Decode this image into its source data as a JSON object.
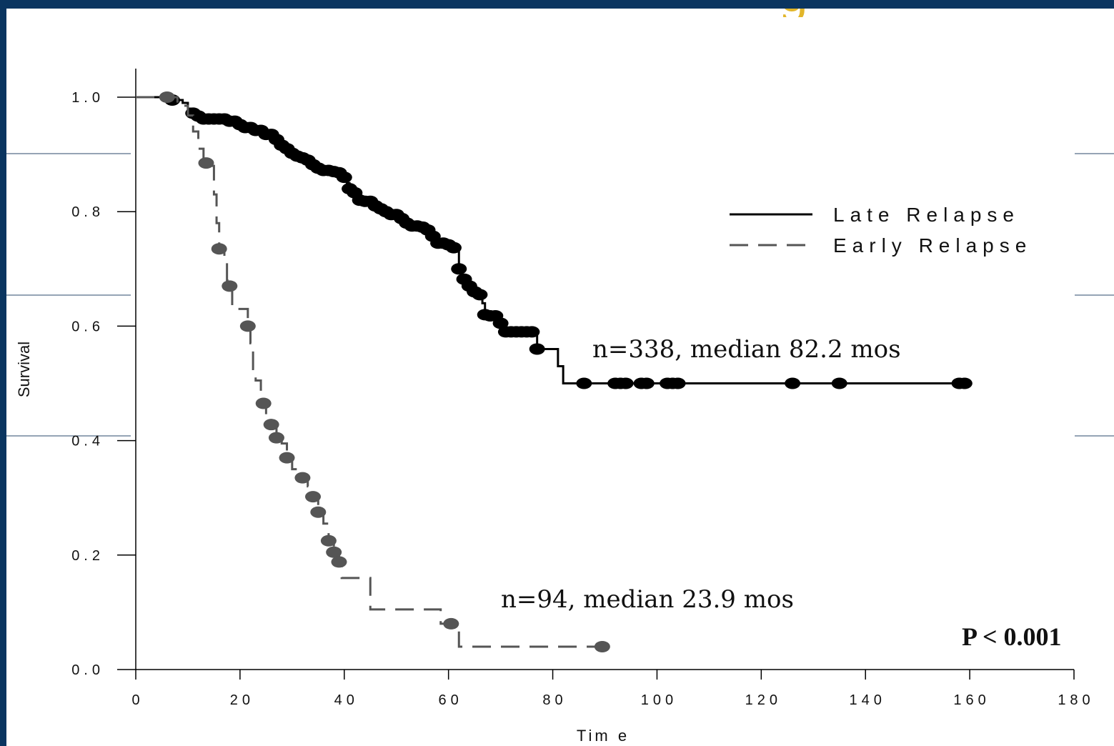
{
  "slide": {
    "title_fragment": "g"
  },
  "chart_data": {
    "type": "line",
    "title": "",
    "xlabel": "Tim e",
    "ylabel": "Survival",
    "xlim": [
      0,
      180
    ],
    "ylim": [
      0,
      1.0
    ],
    "x_ticks": [
      0,
      20,
      40,
      60,
      80,
      100,
      120,
      140,
      160,
      180
    ],
    "x_tick_labels": [
      "0",
      "20",
      "40",
      "60",
      "80",
      "100",
      "120",
      "140",
      "160",
      "180"
    ],
    "y_ticks": [
      0,
      0.2,
      0.4,
      0.6,
      0.8,
      1.0
    ],
    "y_tick_labels": [
      "0.0",
      "0.2",
      "0.4",
      "0.6",
      "0.8",
      "1.0"
    ],
    "grid": false,
    "legend_position": "top-right",
    "series": [
      {
        "name": "Late Relapse",
        "color": "#000000",
        "style": "solid",
        "steps": [
          [
            0,
            1.0
          ],
          [
            7,
            1.0
          ],
          [
            7,
            0.995
          ],
          [
            9,
            0.99
          ],
          [
            10,
            0.98
          ],
          [
            11,
            0.972
          ],
          [
            12,
            0.967
          ],
          [
            13,
            0.962
          ],
          [
            18,
            0.958
          ],
          [
            20,
            0.952
          ],
          [
            21,
            0.947
          ],
          [
            23,
            0.942
          ],
          [
            25,
            0.935
          ],
          [
            27,
            0.926
          ],
          [
            28,
            0.916
          ],
          [
            29,
            0.91
          ],
          [
            30,
            0.902
          ],
          [
            31,
            0.897
          ],
          [
            32,
            0.894
          ],
          [
            33,
            0.89
          ],
          [
            34,
            0.882
          ],
          [
            35,
            0.876
          ],
          [
            36,
            0.872
          ],
          [
            38,
            0.87
          ],
          [
            39,
            0.868
          ],
          [
            40,
            0.86
          ],
          [
            40.5,
            0.85
          ],
          [
            41,
            0.84
          ],
          [
            42,
            0.833
          ],
          [
            42.5,
            0.826
          ],
          [
            43,
            0.82
          ],
          [
            44,
            0.818
          ],
          [
            46,
            0.81
          ],
          [
            47,
            0.805
          ],
          [
            48,
            0.8
          ],
          [
            49,
            0.795
          ],
          [
            51,
            0.788
          ],
          [
            52,
            0.78
          ],
          [
            53,
            0.775
          ],
          [
            55,
            0.773
          ],
          [
            56,
            0.768
          ],
          [
            57,
            0.757
          ],
          [
            58,
            0.745
          ],
          [
            60,
            0.742
          ],
          [
            61,
            0.737
          ],
          [
            62,
            0.73
          ],
          [
            62,
            0.727
          ],
          [
            62,
            0.7
          ],
          [
            62.5,
            0.685
          ],
          [
            63,
            0.682
          ],
          [
            64,
            0.67
          ],
          [
            65,
            0.66
          ],
          [
            66,
            0.655
          ],
          [
            66.5,
            0.64
          ],
          [
            67,
            0.62
          ],
          [
            68,
            0.618
          ],
          [
            70,
            0.605
          ],
          [
            70.5,
            0.59
          ],
          [
            71,
            0.59
          ],
          [
            77,
            0.59
          ],
          [
            77,
            0.56
          ],
          [
            81,
            0.56
          ],
          [
            81,
            0.53
          ],
          [
            82,
            0.53
          ],
          [
            82,
            0.5
          ],
          [
            160,
            0.5
          ]
        ],
        "censor_x": [
          7,
          11,
          12,
          13,
          14,
          15,
          16,
          17,
          18,
          19,
          20,
          21,
          22,
          23,
          24,
          25,
          26,
          27,
          28,
          29,
          30,
          31,
          32,
          33,
          34,
          35,
          36,
          37,
          38,
          39,
          40,
          41,
          42,
          43,
          44,
          45,
          46,
          47,
          48,
          49,
          50,
          51,
          52,
          53,
          54,
          55,
          56,
          57,
          58,
          59,
          60,
          61,
          62,
          63,
          64,
          65,
          66,
          67,
          68,
          69,
          70,
          71,
          72,
          73,
          74,
          75,
          76,
          77,
          86,
          92,
          93,
          94,
          97,
          98,
          102,
          103,
          104,
          126,
          135,
          158,
          159
        ]
      },
      {
        "name": "Early Relapse",
        "color": "#555555",
        "style": "dashed",
        "steps": [
          [
            0,
            1.0
          ],
          [
            6,
            1.0
          ],
          [
            8,
            0.985
          ],
          [
            10,
            0.968
          ],
          [
            11,
            0.94
          ],
          [
            12,
            0.91
          ],
          [
            13,
            0.885
          ],
          [
            14.5,
            0.88
          ],
          [
            15,
            0.83
          ],
          [
            15.5,
            0.78
          ],
          [
            16,
            0.735
          ],
          [
            17,
            0.72
          ],
          [
            17.5,
            0.68
          ],
          [
            18,
            0.67
          ],
          [
            18.5,
            0.63
          ],
          [
            21,
            0.63
          ],
          [
            21.5,
            0.6
          ],
          [
            22,
            0.57
          ],
          [
            22.5,
            0.525
          ],
          [
            23,
            0.505
          ],
          [
            24,
            0.485
          ],
          [
            24.5,
            0.465
          ],
          [
            25,
            0.44
          ],
          [
            26,
            0.428
          ],
          [
            27,
            0.405
          ],
          [
            28,
            0.395
          ],
          [
            29,
            0.37
          ],
          [
            30,
            0.35
          ],
          [
            31,
            0.335
          ],
          [
            33,
            0.32
          ],
          [
            34,
            0.302
          ],
          [
            35,
            0.275
          ],
          [
            36,
            0.255
          ],
          [
            37,
            0.225
          ],
          [
            38,
            0.205
          ],
          [
            39,
            0.188
          ],
          [
            39.5,
            0.16
          ],
          [
            44,
            0.16
          ],
          [
            45,
            0.105
          ],
          [
            58,
            0.105
          ],
          [
            58.5,
            0.08
          ],
          [
            62,
            0.08
          ],
          [
            62,
            0.04
          ],
          [
            90,
            0.04
          ]
        ],
        "censor_x": [
          6,
          13.5,
          16,
          18,
          21.5,
          24.5,
          26,
          27,
          29,
          32,
          34,
          35,
          37,
          38,
          39,
          60.5,
          89.5
        ]
      }
    ],
    "annotations": [
      {
        "text": "n=338, median 82.2 mos"
      },
      {
        "text": "n=94, median 23.9 mos"
      },
      {
        "text": "P < 0.001"
      }
    ]
  }
}
